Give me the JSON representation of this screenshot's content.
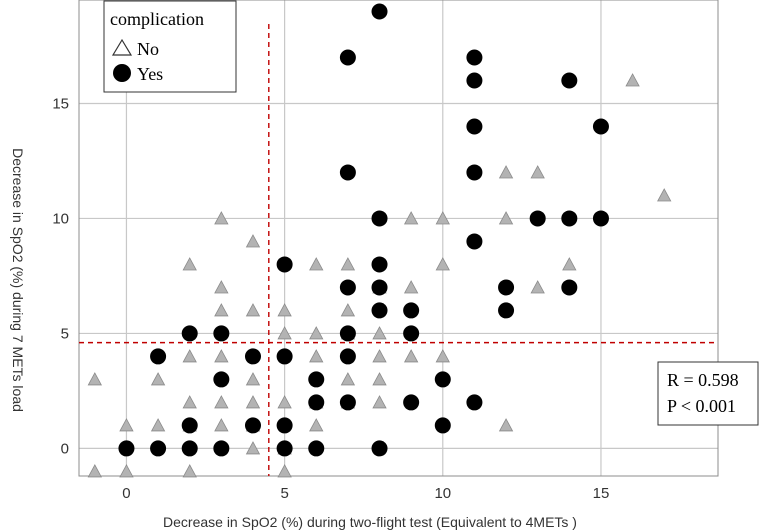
{
  "chart_data": {
    "type": "scatter",
    "title": "",
    "xlabel": "Decrease in SpO2 (%) during two-flight test (Equivalent to 4METs )",
    "ylabel": "Decrease in SpO2 (%) during 7 METs load",
    "xlim": [
      -1.5,
      18.7
    ],
    "ylim": [
      -1.2,
      19.5
    ],
    "x_ticks": [
      0,
      5,
      10,
      15
    ],
    "y_ticks": [
      0,
      5,
      10,
      15
    ],
    "x_tick_labels": [
      "0",
      "5",
      "10",
      "15"
    ],
    "y_tick_labels": [
      "0",
      "5",
      "10",
      "15"
    ],
    "grid": true,
    "reference_lines": {
      "x": 4.5,
      "y": 4.6,
      "color": "#c00000",
      "style": "dashed"
    },
    "legend": {
      "title": "complication",
      "placement": "top-left",
      "entries": [
        {
          "label": "No",
          "marker": "triangle"
        },
        {
          "label": "Yes",
          "marker": "circle"
        }
      ]
    },
    "annotation": {
      "lines": [
        "R = 0.598",
        "P < 0.001"
      ],
      "placement": "right"
    },
    "series": [
      {
        "name": "No",
        "marker": "triangle",
        "color": "#b3b3b3",
        "points": [
          [
            -1,
            3
          ],
          [
            -1,
            -1
          ],
          [
            0,
            1
          ],
          [
            0,
            -1
          ],
          [
            1,
            3
          ],
          [
            1,
            1
          ],
          [
            2,
            8
          ],
          [
            2,
            4
          ],
          [
            2,
            2
          ],
          [
            2,
            1
          ],
          [
            2,
            -1
          ],
          [
            3,
            10
          ],
          [
            3,
            7
          ],
          [
            3,
            6
          ],
          [
            3,
            4
          ],
          [
            3,
            2
          ],
          [
            3,
            1
          ],
          [
            4,
            9
          ],
          [
            4,
            6
          ],
          [
            4,
            3
          ],
          [
            4,
            2
          ],
          [
            4,
            1
          ],
          [
            4,
            0
          ],
          [
            5,
            6
          ],
          [
            5,
            5
          ],
          [
            5,
            2
          ],
          [
            5,
            0
          ],
          [
            5,
            -1
          ],
          [
            6,
            8
          ],
          [
            6,
            5
          ],
          [
            6,
            4
          ],
          [
            6,
            2
          ],
          [
            6,
            1
          ],
          [
            7,
            8
          ],
          [
            7,
            6
          ],
          [
            7,
            5
          ],
          [
            7,
            3
          ],
          [
            7,
            2
          ],
          [
            8,
            7
          ],
          [
            8,
            5
          ],
          [
            8,
            4
          ],
          [
            8,
            3
          ],
          [
            8,
            2
          ],
          [
            9,
            10
          ],
          [
            9,
            7
          ],
          [
            9,
            4
          ],
          [
            10,
            10
          ],
          [
            10,
            8
          ],
          [
            10,
            4
          ],
          [
            12,
            12
          ],
          [
            12,
            10
          ],
          [
            12,
            1
          ],
          [
            13,
            12
          ],
          [
            13,
            7
          ],
          [
            14,
            8
          ],
          [
            16,
            16
          ],
          [
            17,
            11
          ]
        ]
      },
      {
        "name": "Yes",
        "marker": "circle",
        "color": "#000000",
        "points": [
          [
            0,
            0
          ],
          [
            1,
            4
          ],
          [
            1,
            0
          ],
          [
            2,
            5
          ],
          [
            2,
            1
          ],
          [
            2,
            0
          ],
          [
            3,
            5
          ],
          [
            3,
            3
          ],
          [
            3,
            0
          ],
          [
            4,
            4
          ],
          [
            4,
            1
          ],
          [
            5,
            8
          ],
          [
            5,
            4
          ],
          [
            5,
            1
          ],
          [
            5,
            0
          ],
          [
            6,
            3
          ],
          [
            6,
            2
          ],
          [
            6,
            0
          ],
          [
            7,
            17
          ],
          [
            7,
            12
          ],
          [
            7,
            7
          ],
          [
            7,
            5
          ],
          [
            7,
            4
          ],
          [
            7,
            2
          ],
          [
            8,
            19
          ],
          [
            8,
            10
          ],
          [
            8,
            8
          ],
          [
            8,
            7
          ],
          [
            8,
            6
          ],
          [
            8,
            0
          ],
          [
            9,
            6
          ],
          [
            9,
            5
          ],
          [
            9,
            2
          ],
          [
            10,
            3
          ],
          [
            10,
            1
          ],
          [
            11,
            17
          ],
          [
            11,
            16
          ],
          [
            11,
            14
          ],
          [
            11,
            12
          ],
          [
            11,
            9
          ],
          [
            11,
            2
          ],
          [
            12,
            7
          ],
          [
            12,
            6
          ],
          [
            13,
            10
          ],
          [
            14,
            16
          ],
          [
            14,
            10
          ],
          [
            14,
            7
          ],
          [
            15,
            14
          ],
          [
            15,
            10
          ]
        ]
      }
    ]
  }
}
